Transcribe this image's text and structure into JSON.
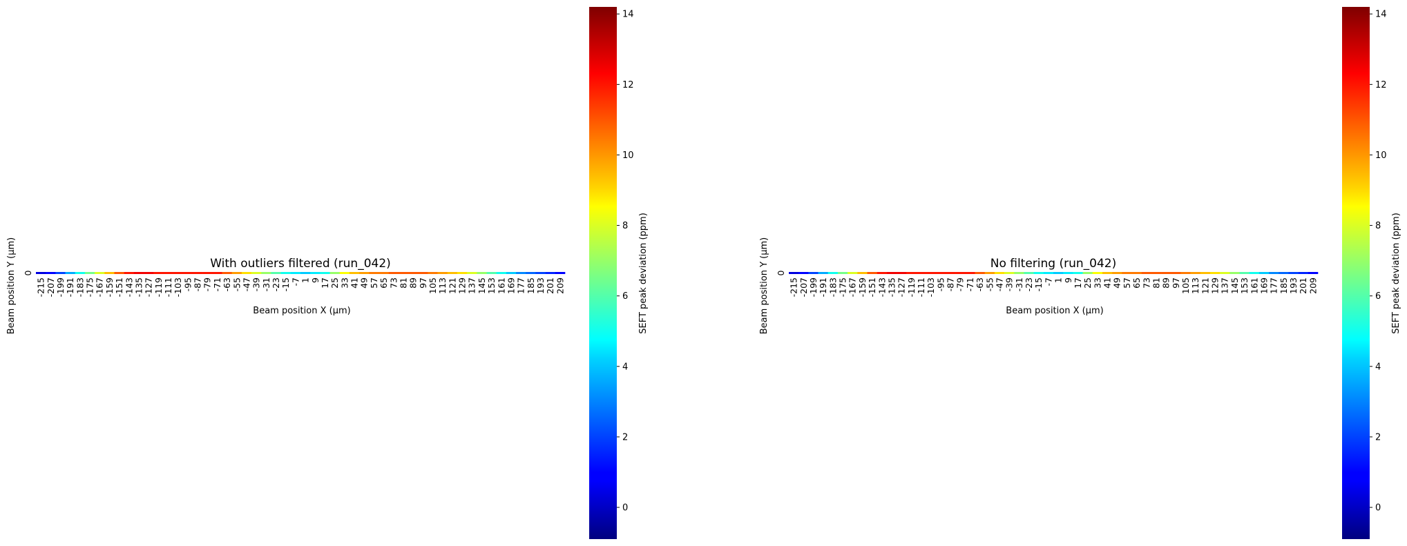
{
  "chart_data": [
    {
      "type": "heatmap",
      "title": "With outliers filtered (run_042)",
      "xlabel": "Beam position X (µm)",
      "ylabel": "Beam position Y (µm)",
      "colorbar_label": "SEFT peak deviation (ppm)",
      "colormap": "jet",
      "vmin": -0.9,
      "vmax": 14.2,
      "colorbar_ticks": [
        "0",
        "2",
        "4",
        "6",
        "8",
        "10",
        "12",
        "14"
      ],
      "y_categories": [
        "0"
      ],
      "x_tick_labels": [
        "-215",
        "-207",
        "-199",
        "-191",
        "-183",
        "-175",
        "-167",
        "-159",
        "-151",
        "-143",
        "-135",
        "-127",
        "-119",
        "-111",
        "-103",
        "-95",
        "-87",
        "-79",
        "-71",
        "-63",
        "-55",
        "-47",
        "-39",
        "-31",
        "-23",
        "-15",
        "-7",
        "1",
        "9",
        "17",
        "25",
        "33",
        "41",
        "49",
        "57",
        "65",
        "73",
        "81",
        "89",
        "97",
        "105",
        "113",
        "121",
        "129",
        "137",
        "145",
        "153",
        "161",
        "169",
        "177",
        "185",
        "193",
        "201",
        "209"
      ],
      "x_categories": [
        -215,
        -207,
        -199,
        -191,
        -183,
        -175,
        -167,
        -159,
        -151,
        -143,
        -135,
        -127,
        -119,
        -111,
        -103,
        -95,
        -87,
        -79,
        -71,
        -63,
        -55,
        -47,
        -39,
        -31,
        -23,
        -15,
        -7,
        1,
        9,
        17,
        25,
        33,
        41,
        49,
        57,
        65,
        73,
        81,
        89,
        97,
        105,
        113,
        121,
        129,
        137,
        145,
        153,
        161,
        169,
        177,
        185,
        193,
        201,
        209
      ],
      "values": [
        [
          0.5,
          1,
          2,
          3.5,
          5,
          6.5,
          8,
          9.5,
          11,
          12,
          12.5,
          12.5,
          12,
          12,
          12,
          12,
          12,
          12,
          12,
          11,
          10,
          9,
          8,
          7,
          6,
          5,
          4.5,
          4,
          4.5,
          5,
          7,
          8.5,
          9.5,
          10,
          10.5,
          10.5,
          11,
          11,
          11,
          11,
          10.5,
          10,
          9.5,
          9,
          8,
          7,
          6,
          5,
          4,
          3,
          2.5,
          2,
          1.5,
          1
        ]
      ]
    },
    {
      "type": "heatmap",
      "title": "No filtering (run_042)",
      "xlabel": "Beam position X (µm)",
      "ylabel": "Beam position Y (µm)",
      "colorbar_label": "SEFT peak deviation (ppm)",
      "colormap": "jet",
      "vmin": -0.9,
      "vmax": 14.2,
      "colorbar_ticks": [
        "0",
        "2",
        "4",
        "6",
        "8",
        "10",
        "12",
        "14"
      ],
      "y_categories": [
        "0"
      ],
      "x_tick_labels": [
        "-215",
        "-207",
        "-199",
        "-191",
        "-183",
        "-175",
        "-167",
        "-159",
        "-151",
        "-143",
        "-135",
        "-127",
        "-119",
        "-111",
        "-103",
        "-95",
        "-87",
        "-79",
        "-71",
        "-63",
        "-55",
        "-47",
        "-39",
        "-31",
        "-23",
        "-15",
        "-7",
        "1",
        "9",
        "17",
        "25",
        "33",
        "41",
        "49",
        "57",
        "65",
        "73",
        "81",
        "89",
        "97",
        "105",
        "113",
        "121",
        "129",
        "137",
        "145",
        "153",
        "161",
        "169",
        "177",
        "185",
        "193",
        "201",
        "209"
      ],
      "x_categories": [
        -215,
        -207,
        -199,
        -191,
        -183,
        -175,
        -167,
        -159,
        -151,
        -143,
        -135,
        -127,
        -119,
        -111,
        -103,
        -95,
        -87,
        -79,
        -71,
        -63,
        -55,
        -47,
        -39,
        -31,
        -23,
        -15,
        -7,
        1,
        9,
        17,
        25,
        33,
        41,
        49,
        57,
        65,
        73,
        81,
        89,
        97,
        105,
        113,
        121,
        129,
        137,
        145,
        153,
        161,
        169,
        177,
        185,
        193,
        201,
        209
      ],
      "values": [
        [
          0.5,
          1,
          2,
          3.5,
          5,
          6.5,
          8,
          9.5,
          11,
          12,
          12.5,
          12.5,
          12,
          12,
          12,
          12,
          12,
          12,
          12,
          11,
          10,
          9,
          8,
          7,
          6,
          5,
          4.5,
          4,
          4.5,
          5,
          7,
          8.5,
          9.5,
          10,
          10.5,
          10.5,
          11,
          11,
          11,
          11,
          10.5,
          10,
          9.5,
          9,
          8,
          7,
          6,
          5,
          4,
          3,
          2.5,
          2,
          1.5,
          1
        ]
      ]
    }
  ]
}
